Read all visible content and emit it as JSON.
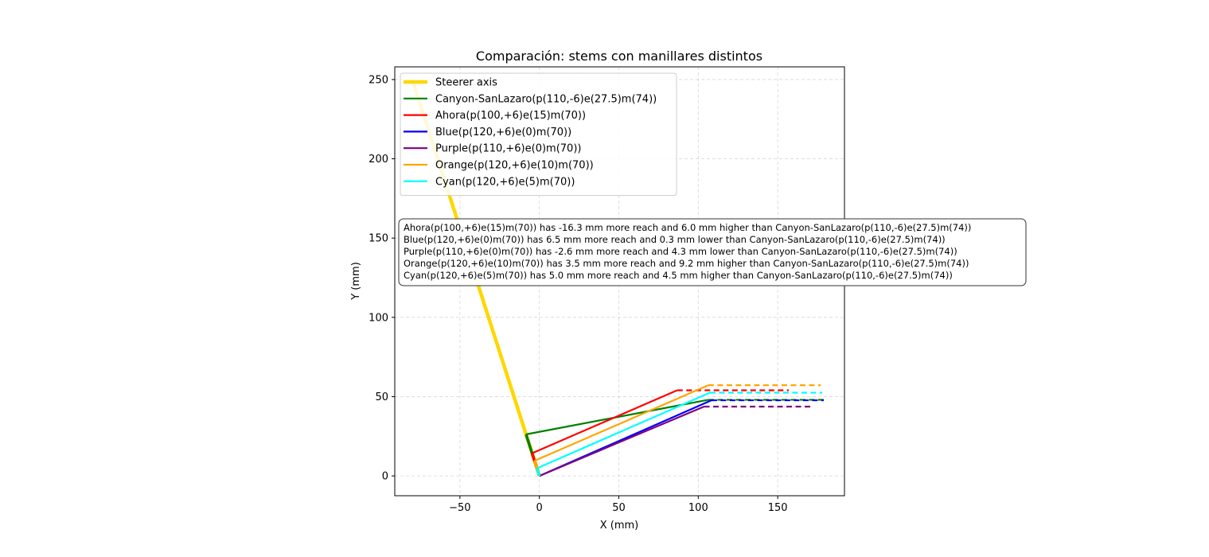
{
  "chart_data": {
    "type": "line",
    "title": "Comparación: stems con manillares distintos",
    "xlabel": "X (mm)",
    "ylabel": "Y (mm)",
    "xlim": [
      -91,
      192
    ],
    "ylim": [
      -12.5,
      258
    ],
    "xticks": [
      -50,
      0,
      50,
      100,
      150
    ],
    "yticks": [
      0,
      50,
      100,
      150,
      200,
      250
    ],
    "grid": true,
    "legend_position": "upper-left",
    "steerer": {
      "name": "Steerer axis",
      "color": "#FFD700",
      "points": [
        [
          0,
          0
        ],
        [
          -80,
          250
        ]
      ]
    },
    "series": [
      {
        "name": "Canyon-SanLazaro(p(110,-6)e(27.5)m(74))",
        "color": "#008000",
        "spacer": [
          [
            0,
            0
          ],
          [
            -8.4,
            26.2
          ]
        ],
        "stem": [
          [
            -8.4,
            26.2
          ],
          [
            106.3,
            48.0
          ]
        ],
        "bar": [
          [
            106.3,
            48.0
          ],
          [
            180,
            48.0
          ]
        ]
      },
      {
        "name": "Ahora(p(100,+6)e(15)m(70))",
        "color": "#FF0000",
        "spacer": [
          [
            0,
            0
          ],
          [
            -4.6,
            14.3
          ]
        ],
        "stem": [
          [
            -4.6,
            14.3
          ],
          [
            86.7,
            54.0
          ]
        ],
        "bar": [
          [
            86.7,
            54.0
          ],
          [
            157,
            54.0
          ]
        ]
      },
      {
        "name": "Blue(p(120,+6)e(0)m(70))",
        "color": "#0000FF",
        "spacer": [
          [
            0,
            0
          ],
          [
            0,
            0
          ]
        ],
        "stem": [
          [
            0,
            0
          ],
          [
            108.3,
            47.7
          ]
        ],
        "bar": [
          [
            108.3,
            47.7
          ],
          [
            179,
            47.7
          ]
        ]
      },
      {
        "name": "Purple(p(110,+6)e(0)m(70))",
        "color": "#800080",
        "spacer": [
          [
            0,
            0
          ],
          [
            0,
            0
          ]
        ],
        "stem": [
          [
            0,
            0
          ],
          [
            103.6,
            43.7
          ]
        ],
        "bar": [
          [
            103.6,
            43.7
          ],
          [
            171,
            43.7
          ]
        ]
      },
      {
        "name": "Orange(p(120,+6)e(10)m(70))",
        "color": "#FFA500",
        "spacer": [
          [
            0,
            0
          ],
          [
            -3.1,
            9.5
          ]
        ],
        "stem": [
          [
            -3.1,
            9.5
          ],
          [
            106.3,
            57.2
          ]
        ],
        "bar": [
          [
            106.3,
            57.2
          ],
          [
            177,
            57.2
          ]
        ]
      },
      {
        "name": "Cyan(p(120,+6)e(5)m(70))",
        "color": "#00FFFF",
        "spacer": [
          [
            0,
            0
          ],
          [
            -1.5,
            4.8
          ]
        ],
        "stem": [
          [
            -1.5,
            4.8
          ],
          [
            107.3,
            52.5
          ]
        ],
        "bar": [
          [
            107.3,
            52.5
          ],
          [
            178,
            52.5
          ]
        ]
      }
    ],
    "annotations": [
      "Ahora(p(100,+6)e(15)m(70)) has -16.3 mm more reach and 6.0 mm higher than Canyon-SanLazaro(p(110,-6)e(27.5)m(74))",
      "Blue(p(120,+6)e(0)m(70)) has 6.5 mm more reach and 0.3 mm lower than Canyon-SanLazaro(p(110,-6)e(27.5)m(74))",
      "Purple(p(110,+6)e(0)m(70)) has -2.6 mm more reach and 4.3 mm lower than Canyon-SanLazaro(p(110,-6)e(27.5)m(74))",
      "Orange(p(120,+6)e(10)m(70)) has 3.5 mm more reach and 9.2 mm higher than Canyon-SanLazaro(p(110,-6)e(27.5)m(74))",
      "Cyan(p(120,+6)e(5)m(70)) has 5.0 mm more reach and 4.5 mm higher than Canyon-SanLazaro(p(110,-6)e(27.5)m(74))"
    ]
  }
}
